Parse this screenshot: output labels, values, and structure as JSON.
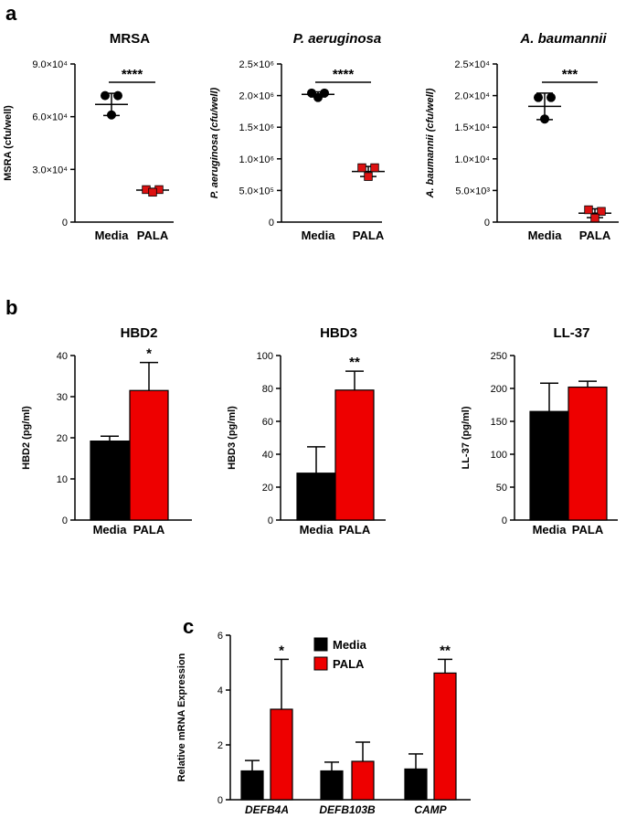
{
  "panel_letters": [
    "a",
    "b",
    "c"
  ],
  "chart_data": [
    {
      "id": "a1",
      "panel": "a",
      "type": "scatter",
      "title": "MRSA",
      "title_italic": false,
      "ylabel": "MSRA (cfu/well)",
      "ylabel_italic": false,
      "categories": [
        "Media",
        "PALA"
      ],
      "ylim": [
        0,
        90000
      ],
      "yticks": [
        {
          "value": 0,
          "label": "0"
        },
        {
          "value": 30000,
          "label": "3.0×10⁴"
        },
        {
          "value": 60000,
          "label": "6.0×10⁴"
        },
        {
          "value": 90000,
          "label": "9.0×10⁴"
        }
      ],
      "series": [
        {
          "name": "Media",
          "color": "#000000",
          "marker": "circle",
          "points": [
            72000,
            72000,
            61000
          ],
          "mean": 67000,
          "sd": 6300
        },
        {
          "name": "PALA",
          "color": "#dd1111",
          "marker": "square",
          "points": [
            18500,
            18500,
            17000
          ],
          "mean": 18200,
          "sd": 1000
        }
      ],
      "significance": "****"
    },
    {
      "id": "a2",
      "panel": "a",
      "type": "scatter",
      "title": "P. aeruginosa",
      "title_italic": true,
      "ylabel": "P. aeruginosa (cfu/well)",
      "ylabel_italic": true,
      "categories": [
        "Media",
        "PALA"
      ],
      "ylim": [
        0,
        2500000
      ],
      "yticks": [
        {
          "value": 0,
          "label": "0"
        },
        {
          "value": 500000,
          "label": "5.0×10⁵"
        },
        {
          "value": 1000000,
          "label": "1.0×10⁶"
        },
        {
          "value": 1500000,
          "label": "1.5×10⁶"
        },
        {
          "value": 2000000,
          "label": "2.0×10⁶"
        },
        {
          "value": 2500000,
          "label": "2.5×10⁶"
        }
      ],
      "series": [
        {
          "name": "Media",
          "color": "#000000",
          "marker": "circle",
          "points": [
            2040000,
            2040000,
            1970000
          ],
          "mean": 2020000,
          "sd": 40000
        },
        {
          "name": "PALA",
          "color": "#dd1111",
          "marker": "square",
          "points": [
            860000,
            860000,
            720000
          ],
          "mean": 800000,
          "sd": 80000
        }
      ],
      "significance": "****"
    },
    {
      "id": "a3",
      "panel": "a",
      "type": "scatter",
      "title": "A. baumannii",
      "title_italic": true,
      "ylabel": "A. baumannii (cfu/well)",
      "ylabel_italic": true,
      "categories": [
        "Media",
        "PALA"
      ],
      "ylim": [
        0,
        25000
      ],
      "yticks": [
        {
          "value": 0,
          "label": "0"
        },
        {
          "value": 5000,
          "label": "5.0×10³"
        },
        {
          "value": 10000,
          "label": "1.0×10⁴"
        },
        {
          "value": 15000,
          "label": "1.5×10⁴"
        },
        {
          "value": 20000,
          "label": "2.0×10⁴"
        },
        {
          "value": 25000,
          "label": "2.5×10⁴"
        }
      ],
      "series": [
        {
          "name": "Media",
          "color": "#000000",
          "marker": "circle",
          "points": [
            19700,
            19700,
            16300
          ],
          "mean": 18300,
          "sd": 2100
        },
        {
          "name": "PALA",
          "color": "#dd1111",
          "marker": "square",
          "points": [
            1950,
            1700,
            650
          ],
          "mean": 1400,
          "sd": 700
        }
      ],
      "significance": "***"
    },
    {
      "id": "b1",
      "panel": "b",
      "type": "bar",
      "title": "HBD2",
      "ylabel": "HBD2 (pg/ml)",
      "categories": [
        "Media",
        "PALA"
      ],
      "ylim": [
        0,
        40
      ],
      "yticks": [
        0,
        10,
        20,
        30,
        40
      ],
      "values": [
        19.2,
        31.5
      ],
      "errors": [
        1.2,
        6.8
      ],
      "colors": [
        "#000000",
        "#ee0000"
      ],
      "significance": [
        null,
        "*"
      ]
    },
    {
      "id": "b2",
      "panel": "b",
      "type": "bar",
      "title": "HBD3",
      "ylabel": "HBD3 (pg/ml)",
      "categories": [
        "Media",
        "PALA"
      ],
      "ylim": [
        0,
        100
      ],
      "yticks": [
        0,
        20,
        40,
        60,
        80,
        100
      ],
      "values": [
        28.5,
        79
      ],
      "errors": [
        16,
        11.5
      ],
      "colors": [
        "#000000",
        "#ee0000"
      ],
      "significance": [
        null,
        "**"
      ]
    },
    {
      "id": "b3",
      "panel": "b",
      "type": "bar",
      "title": "LL-37",
      "ylabel": "LL-37 (pg/ml)",
      "categories": [
        "Media",
        "PALA"
      ],
      "ylim": [
        0,
        250
      ],
      "yticks": [
        0,
        50,
        100,
        150,
        200,
        250
      ],
      "values": [
        165,
        202
      ],
      "errors": [
        43,
        9
      ],
      "colors": [
        "#000000",
        "#ee0000"
      ],
      "significance": [
        null,
        null
      ]
    },
    {
      "id": "c1",
      "panel": "c",
      "type": "bar",
      "title": "",
      "ylabel": "Relative mRNA Expression",
      "categories": [
        "DEFB4A",
        "DEFB103B",
        "CAMP"
      ],
      "ylim": [
        0,
        6
      ],
      "yticks": [
        0,
        2,
        4,
        6
      ],
      "series": [
        {
          "name": "Media",
          "color": "#000000",
          "values": [
            1.05,
            1.05,
            1.12
          ],
          "errors": [
            0.38,
            0.32,
            0.55
          ]
        },
        {
          "name": "PALA",
          "color": "#ee0000",
          "values": [
            3.3,
            1.4,
            4.62
          ],
          "errors": [
            1.82,
            0.7,
            0.5
          ]
        }
      ],
      "significance": [
        [
          "",
          "*"
        ],
        [
          "",
          ""
        ],
        [
          "",
          "**"
        ]
      ],
      "legend": [
        "Media",
        "PALA"
      ],
      "legend_position": "top-left"
    }
  ]
}
